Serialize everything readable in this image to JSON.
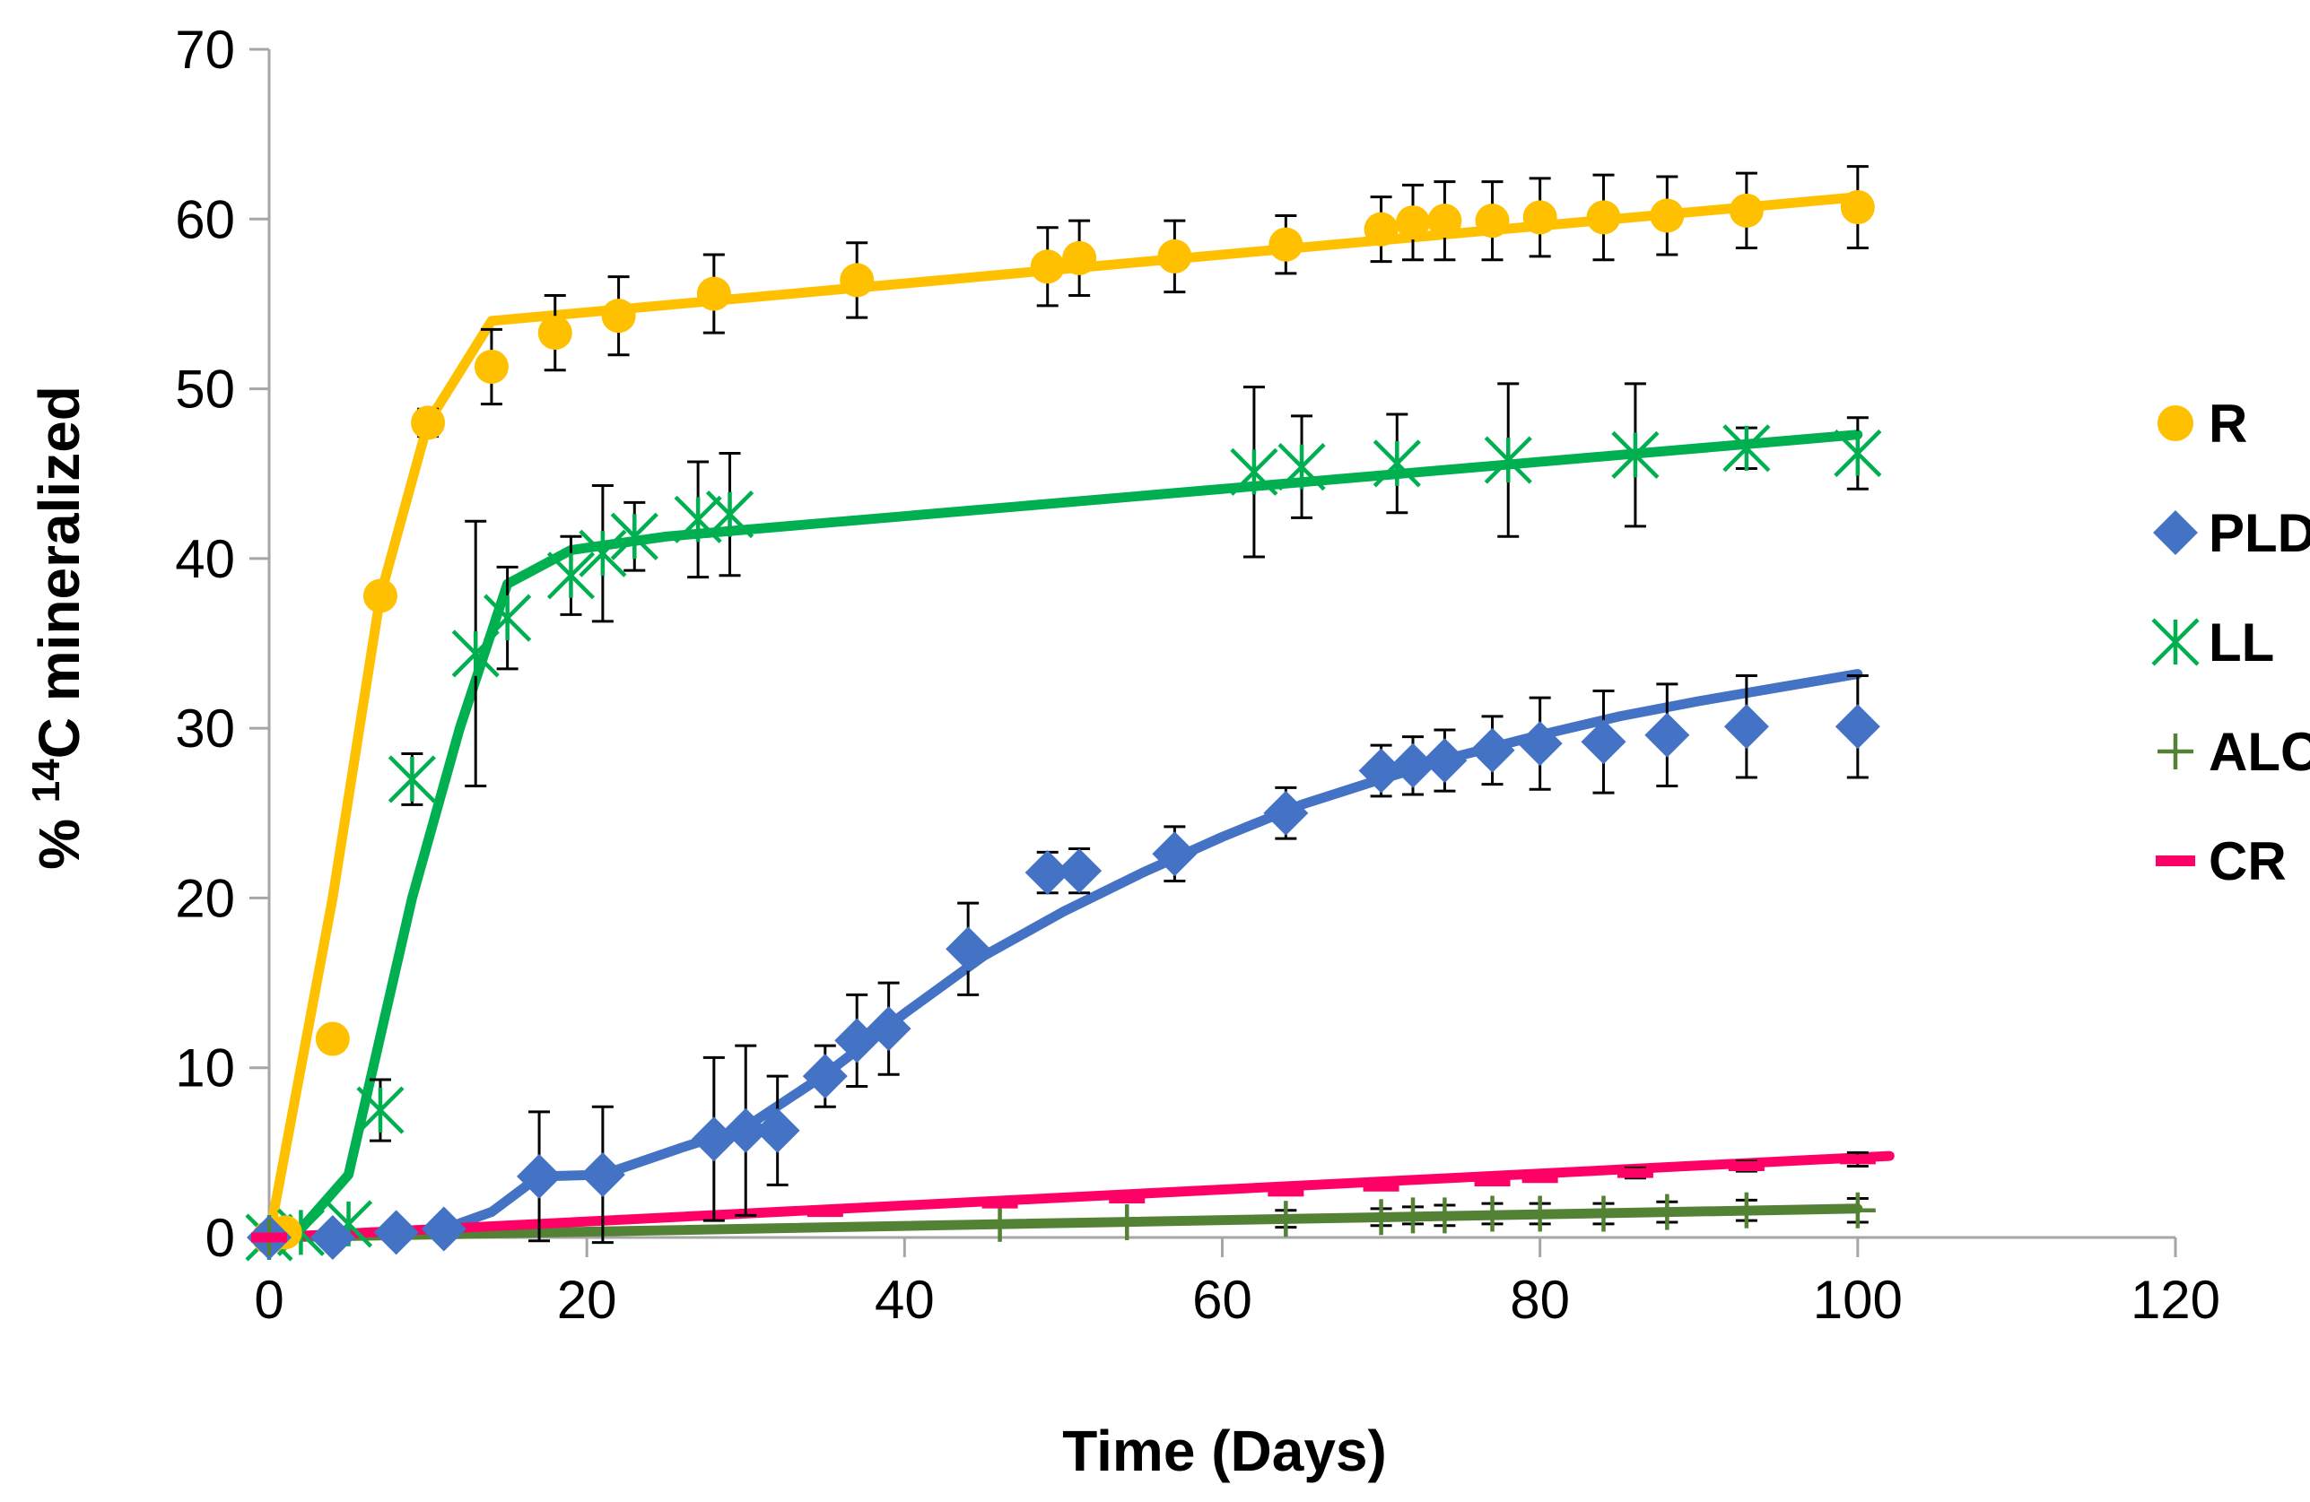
{
  "chart_data": {
    "type": "scatter",
    "title": "",
    "xlabel": "Time (Days)",
    "ylabel_prefix": "% ",
    "ylabel_sup": "14",
    "ylabel_suffix": "C mineralized",
    "xlim": [
      0,
      120
    ],
    "ylim": [
      0,
      70
    ],
    "xticks": [
      0,
      20,
      40,
      60,
      80,
      100,
      120
    ],
    "yticks": [
      0,
      10,
      20,
      30,
      40,
      50,
      60,
      70
    ],
    "legend_position": "right",
    "series": [
      {
        "name": "R",
        "color": "#FFC000",
        "marker": "circle",
        "points": [
          {
            "x": 0,
            "y": 0,
            "err": 0
          },
          {
            "x": 1,
            "y": 0.3,
            "err": 0
          },
          {
            "x": 4,
            "y": 11.7,
            "err": 0
          },
          {
            "x": 7,
            "y": 37.8,
            "err": 0
          },
          {
            "x": 10,
            "y": 48,
            "err": 0.8
          },
          {
            "x": 14,
            "y": 51.3,
            "err": 2.2
          },
          {
            "x": 18,
            "y": 53.3,
            "err": 2.2
          },
          {
            "x": 22,
            "y": 54.3,
            "err": 2.3
          },
          {
            "x": 28,
            "y": 55.6,
            "err": 2.3
          },
          {
            "x": 37,
            "y": 56.4,
            "err": 2.2
          },
          {
            "x": 49,
            "y": 57.2,
            "err": 2.3
          },
          {
            "x": 51,
            "y": 57.7,
            "err": 2.2
          },
          {
            "x": 57,
            "y": 57.8,
            "err": 2.1
          },
          {
            "x": 64,
            "y": 58.5,
            "err": 1.7
          },
          {
            "x": 70,
            "y": 59.4,
            "err": 1.9
          },
          {
            "x": 72,
            "y": 59.8,
            "err": 2.2
          },
          {
            "x": 74,
            "y": 59.9,
            "err": 2.3
          },
          {
            "x": 77,
            "y": 59.9,
            "err": 2.3
          },
          {
            "x": 80,
            "y": 60.1,
            "err": 2.3
          },
          {
            "x": 84,
            "y": 60.1,
            "err": 2.5
          },
          {
            "x": 88,
            "y": 60.2,
            "err": 2.3
          },
          {
            "x": 93,
            "y": 60.5,
            "err": 2.2
          },
          {
            "x": 100,
            "y": 60.7,
            "err": 2.4
          }
        ],
        "fit": [
          [
            0,
            0
          ],
          [
            4,
            20
          ],
          [
            7,
            37.8
          ],
          [
            10,
            48
          ],
          [
            14,
            54
          ],
          [
            100,
            61.3
          ]
        ]
      },
      {
        "name": "PLD",
        "color": "#4472C4",
        "marker": "diamond",
        "points": [
          {
            "x": 0,
            "y": 0,
            "err": 0
          },
          {
            "x": 4,
            "y": 0,
            "err": 0
          },
          {
            "x": 8,
            "y": 0.3,
            "err": 0
          },
          {
            "x": 11,
            "y": 0.5,
            "err": 0.5
          },
          {
            "x": 17,
            "y": 3.6,
            "err": 3.8
          },
          {
            "x": 21,
            "y": 3.7,
            "err": 4
          },
          {
            "x": 28,
            "y": 5.8,
            "err": 4.8
          },
          {
            "x": 30,
            "y": 6.3,
            "err": 5
          },
          {
            "x": 32,
            "y": 6.3,
            "err": 3.2
          },
          {
            "x": 35,
            "y": 9.5,
            "err": 1.8
          },
          {
            "x": 37,
            "y": 11.6,
            "err": 2.7
          },
          {
            "x": 39,
            "y": 12.3,
            "err": 2.7
          },
          {
            "x": 44,
            "y": 17,
            "err": 2.7
          },
          {
            "x": 49,
            "y": 21.5,
            "err": 1.2
          },
          {
            "x": 51,
            "y": 21.6,
            "err": 1.3
          },
          {
            "x": 57,
            "y": 22.6,
            "err": 1.6
          },
          {
            "x": 64,
            "y": 25,
            "err": 1.5
          },
          {
            "x": 70,
            "y": 27.5,
            "err": 1.5
          },
          {
            "x": 72,
            "y": 27.8,
            "err": 1.7
          },
          {
            "x": 74,
            "y": 28.1,
            "err": 1.8
          },
          {
            "x": 77,
            "y": 28.7,
            "err": 2
          },
          {
            "x": 80,
            "y": 29.1,
            "err": 2.7
          },
          {
            "x": 84,
            "y": 29.2,
            "err": 3
          },
          {
            "x": 88,
            "y": 29.6,
            "err": 3
          },
          {
            "x": 93,
            "y": 30.1,
            "err": 3
          },
          {
            "x": 100,
            "y": 30.1,
            "err": 3
          }
        ],
        "fit": [
          [
            0,
            0
          ],
          [
            11,
            0.5
          ],
          [
            14,
            1.5
          ],
          [
            17,
            3.6
          ],
          [
            21,
            3.7
          ],
          [
            26,
            5.3
          ],
          [
            30,
            6.5
          ],
          [
            35,
            9.6
          ],
          [
            40,
            13.2
          ],
          [
            45,
            16.6
          ],
          [
            50,
            19.2
          ],
          [
            55,
            21.5
          ],
          [
            60,
            23.6
          ],
          [
            65,
            25.5
          ],
          [
            70,
            27
          ],
          [
            75,
            28.4
          ],
          [
            80,
            29.6
          ],
          [
            85,
            30.7
          ],
          [
            90,
            31.6
          ],
          [
            95,
            32.4
          ],
          [
            100,
            33.2
          ]
        ]
      },
      {
        "name": "LL",
        "color": "#00B050",
        "marker": "asterisk",
        "points": [
          {
            "x": 0,
            "y": 0,
            "err": 0
          },
          {
            "x": 2,
            "y": 0.3,
            "err": 0
          },
          {
            "x": 5,
            "y": 0.8,
            "err": 0
          },
          {
            "x": 7,
            "y": 7.5,
            "err": 1.8
          },
          {
            "x": 9,
            "y": 27,
            "err": 1.5
          },
          {
            "x": 13,
            "y": 34.4,
            "err": 7.8
          },
          {
            "x": 15,
            "y": 36.5,
            "err": 3
          },
          {
            "x": 19,
            "y": 39,
            "err": 2.3
          },
          {
            "x": 21,
            "y": 40.3,
            "err": 4
          },
          {
            "x": 23,
            "y": 41.3,
            "err": 2
          },
          {
            "x": 27,
            "y": 42.3,
            "err": 3.4
          },
          {
            "x": 29,
            "y": 42.6,
            "err": 3.6
          },
          {
            "x": 62,
            "y": 45.1,
            "err": 5
          },
          {
            "x": 65,
            "y": 45.4,
            "err": 3
          },
          {
            "x": 71,
            "y": 45.6,
            "err": 2.9
          },
          {
            "x": 78,
            "y": 45.8,
            "err": 4.5
          },
          {
            "x": 86,
            "y": 46.1,
            "err": 4.2
          },
          {
            "x": 93,
            "y": 46.5,
            "err": 1.2
          },
          {
            "x": 100,
            "y": 46.2,
            "err": 2.1
          }
        ],
        "fit": [
          [
            0,
            0
          ],
          [
            2,
            0.5
          ],
          [
            5,
            3.7
          ],
          [
            9,
            20
          ],
          [
            12,
            30
          ],
          [
            15,
            38.5
          ],
          [
            19,
            40.5
          ],
          [
            25,
            41.3
          ],
          [
            100,
            47.3
          ]
        ]
      },
      {
        "name": "ALC",
        "color": "#548235",
        "marker": "plus",
        "points": [
          {
            "x": 0,
            "y": 0,
            "err": 0
          },
          {
            "x": 46,
            "y": 0.8,
            "err": 0
          },
          {
            "x": 54,
            "y": 0.9,
            "err": 0
          },
          {
            "x": 64,
            "y": 1.1,
            "err": 0.5
          },
          {
            "x": 70,
            "y": 1.2,
            "err": 0.5
          },
          {
            "x": 72,
            "y": 1.3,
            "err": 0.5
          },
          {
            "x": 74,
            "y": 1.3,
            "err": 0.6
          },
          {
            "x": 77,
            "y": 1.4,
            "err": 0.6
          },
          {
            "x": 80,
            "y": 1.4,
            "err": 0.6
          },
          {
            "x": 84,
            "y": 1.4,
            "err": 0.6
          },
          {
            "x": 88,
            "y": 1.5,
            "err": 0.6
          },
          {
            "x": 93,
            "y": 1.6,
            "err": 0.6
          },
          {
            "x": 100,
            "y": 1.6,
            "err": 0.7
          }
        ],
        "fit": [
          [
            0,
            0
          ],
          [
            100,
            1.7
          ]
        ]
      },
      {
        "name": "CR",
        "color": "#FF0066",
        "marker": "dash",
        "points": [
          {
            "x": 0,
            "y": 0,
            "err": 0
          },
          {
            "x": 35,
            "y": 1.5,
            "err": 0
          },
          {
            "x": 46,
            "y": 2,
            "err": 0
          },
          {
            "x": 54,
            "y": 2.3,
            "err": 0
          },
          {
            "x": 64,
            "y": 2.7,
            "err": 0
          },
          {
            "x": 70,
            "y": 3,
            "err": 0
          },
          {
            "x": 77,
            "y": 3.3,
            "err": 0
          },
          {
            "x": 80,
            "y": 3.5,
            "err": 0.2
          },
          {
            "x": 86,
            "y": 3.8,
            "err": 0.3
          },
          {
            "x": 93,
            "y": 4.2,
            "err": 0.3
          },
          {
            "x": 100,
            "y": 4.6,
            "err": 0.4
          }
        ],
        "fit": [
          [
            0,
            0
          ],
          [
            102,
            4.8
          ]
        ]
      }
    ]
  }
}
